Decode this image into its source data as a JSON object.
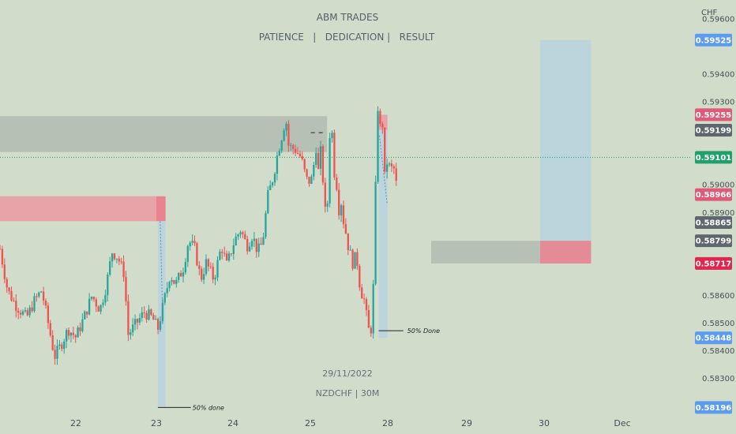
{
  "header": {
    "title": "ABM TRADES",
    "subtitle": "PATIENCE   |   DEDICATION |   RESULT"
  },
  "watermark": {
    "date": "29/11/2022",
    "symbol": "NZDCHF | 30M"
  },
  "currency": "CHF",
  "colors": {
    "background": "#d1dccb",
    "up": "#26a69a",
    "down": "#ef5350",
    "zone_gray": "#b4bcb2",
    "zone_red": "#e8a3a8",
    "target_blue": "#b9d2df",
    "tag_blue": "#5b9cf0",
    "tag_red": "#e05a78",
    "tag_gray": "#5f676e",
    "tag_green": "#22a06b",
    "tag_crimson": "#e0254e"
  },
  "annotations": {
    "fifty_done_1": "50% done",
    "fifty_done_2": "50% Done"
  },
  "chart_data": {
    "type": "candlestick",
    "symbol": "NZDCHF",
    "timeframe": "30M",
    "y_ticks": [
      0.596,
      0.594,
      0.593,
      0.59,
      0.589,
      0.586,
      0.585,
      0.584,
      0.583
    ],
    "y_tick_labels": [
      "0.59600",
      "0.59400",
      "0.59300",
      "0.59000",
      "0.58900",
      "0.58600",
      "0.58500",
      "0.58400",
      "0.58300"
    ],
    "ylim": [
      0.5818,
      0.5967
    ],
    "x_labels": [
      {
        "label": "22",
        "day": 22
      },
      {
        "label": "23",
        "day": 23
      },
      {
        "label": "24",
        "day": 24
      },
      {
        "label": "25",
        "day": 25
      },
      {
        "label": "28",
        "day": 28
      },
      {
        "label": "29",
        "day": 29
      },
      {
        "label": "30",
        "day": 30
      },
      {
        "label": "Dec",
        "day": 31
      }
    ],
    "price_tags": [
      {
        "label": "0.59525",
        "value": 0.59525,
        "color": "#5b9cf0"
      },
      {
        "label": "0.59255",
        "value": 0.59255,
        "color": "#e05a78"
      },
      {
        "label": "0.59199",
        "value": 0.59199,
        "color": "#5f676e"
      },
      {
        "label": "0.59101",
        "value": 0.59101,
        "color": "#22a06b"
      },
      {
        "label": "0.58966",
        "value": 0.58966,
        "color": "#e05a78"
      },
      {
        "label": "0.58865",
        "value": 0.58865,
        "color": "#5f676e"
      },
      {
        "label": "0.58799",
        "value": 0.58799,
        "color": "#5f676e"
      },
      {
        "label": "0.58717",
        "value": 0.58717,
        "color": "#e0254e"
      },
      {
        "label": "0.58448",
        "value": 0.58448,
        "color": "#5b9cf0"
      },
      {
        "label": "0.58196",
        "value": 0.58196,
        "color": "#5b9cf0"
      }
    ],
    "current_price": 0.59101,
    "zones": [
      {
        "kind": "supply-gray",
        "x_start": 21.0,
        "x_end": 25.65,
        "y_top": 0.5925,
        "y_bottom": 0.5912
      },
      {
        "kind": "supply-red",
        "x_start": 21.0,
        "x_end": 23.0,
        "y_top": 0.5896,
        "y_bottom": 0.5887
      },
      {
        "kind": "supply-red-edge",
        "x_start": 23.0,
        "x_end": 23.12,
        "y_top": 0.5896,
        "y_bottom": 0.5887
      },
      {
        "kind": "supply-red",
        "x_start": 27.65,
        "x_end": 27.99,
        "y_top": 0.59255,
        "y_bottom": 0.592
      },
      {
        "kind": "target-blue",
        "x_start": 23.02,
        "x_end": 23.12,
        "y_top": 0.5887,
        "y_bottom": 0.58196
      },
      {
        "kind": "target-blue",
        "x_start": 27.65,
        "x_end": 27.99,
        "y_top": 0.592,
        "y_bottom": 0.58448
      },
      {
        "kind": "demand-gray",
        "x_start": 28.55,
        "x_end": 30.6,
        "y_top": 0.58799,
        "y_bottom": 0.58717
      },
      {
        "kind": "target-blue",
        "x_start": 29.95,
        "x_end": 30.6,
        "y_top": 0.59525,
        "y_bottom": 0.58799
      },
      {
        "kind": "entry-red",
        "x_start": 29.95,
        "x_end": 30.6,
        "y_top": 0.58799,
        "y_bottom": 0.58717
      }
    ],
    "close_path": [
      [
        21.0,
        0.5877
      ],
      [
        21.1,
        0.5862
      ],
      [
        21.2,
        0.5857
      ],
      [
        21.35,
        0.5852
      ],
      [
        21.45,
        0.5858
      ],
      [
        21.55,
        0.5862
      ],
      [
        21.65,
        0.5848
      ],
      [
        21.72,
        0.5838
      ],
      [
        21.8,
        0.5842
      ],
      [
        21.9,
        0.5848
      ],
      [
        22.0,
        0.5845
      ],
      [
        22.1,
        0.5852
      ],
      [
        22.2,
        0.586
      ],
      [
        22.3,
        0.5855
      ],
      [
        22.38,
        0.5864
      ],
      [
        22.45,
        0.5876
      ],
      [
        22.52,
        0.5874
      ],
      [
        22.6,
        0.5868
      ],
      [
        22.65,
        0.5846
      ],
      [
        22.75,
        0.585
      ],
      [
        22.85,
        0.5854
      ],
      [
        22.95,
        0.5852
      ],
      [
        23.02,
        0.5848
      ],
      [
        23.1,
        0.5858
      ],
      [
        23.18,
        0.5868
      ],
      [
        23.25,
        0.5864
      ],
      [
        23.35,
        0.587
      ],
      [
        23.42,
        0.588
      ],
      [
        23.5,
        0.5877
      ],
      [
        23.58,
        0.5866
      ],
      [
        23.65,
        0.5872
      ],
      [
        23.75,
        0.5866
      ],
      [
        23.85,
        0.5878
      ],
      [
        23.92,
        0.5871
      ],
      [
        24.02,
        0.588
      ],
      [
        24.1,
        0.5884
      ],
      [
        24.18,
        0.5878
      ],
      [
        24.25,
        0.5882
      ],
      [
        24.32,
        0.5876
      ],
      [
        24.38,
        0.5879
      ],
      [
        24.45,
        0.5896
      ],
      [
        24.52,
        0.5903
      ],
      [
        24.58,
        0.5912
      ],
      [
        24.65,
        0.592
      ],
      [
        24.68,
        0.5925
      ],
      [
        24.72,
        0.5914
      ],
      [
        24.8,
        0.5913
      ],
      [
        24.88,
        0.591
      ],
      [
        24.95,
        0.5902
      ],
      [
        25.02,
        0.5901
      ],
      [
        25.1,
        0.5905
      ],
      [
        25.18,
        0.5911
      ],
      [
        25.25,
        0.5916
      ],
      [
        25.3,
        0.5904
      ],
      [
        25.38,
        0.5913
      ],
      [
        25.45,
        0.5909
      ],
      [
        25.52,
        0.5896
      ],
      [
        25.58,
        0.589
      ],
      [
        25.63,
        0.5885
      ],
      [
        25.7,
        0.5903
      ],
      [
        25.75,
        0.5918
      ],
      [
        25.78,
        0.5923
      ],
      [
        25.85,
        0.5918
      ],
      [
        25.92,
        0.5905
      ],
      [
        25.98,
        0.5903
      ],
      [
        26.05,
        0.5898
      ],
      [
        26.12,
        0.589
      ],
      [
        26.2,
        0.5894
      ],
      [
        26.3,
        0.5886
      ],
      [
        26.4,
        0.5882
      ],
      [
        26.5,
        0.5876
      ],
      [
        26.6,
        0.5874
      ],
      [
        26.68,
        0.587
      ],
      [
        26.75,
        0.5875
      ],
      [
        26.82,
        0.5872
      ],
      [
        26.9,
        0.5865
      ],
      [
        26.98,
        0.5862
      ],
      [
        27.05,
        0.5857
      ],
      [
        27.12,
        0.586
      ],
      [
        27.18,
        0.5852
      ],
      [
        27.24,
        0.5846
      ],
      [
        27.28,
        0.5849
      ],
      [
        27.32,
        0.5846
      ],
      [
        27.35,
        0.5848
      ],
      [
        27.4,
        0.5852
      ],
      [
        27.45,
        0.5866
      ],
      [
        27.5,
        0.5882
      ],
      [
        27.53,
        0.59
      ],
      [
        27.57,
        0.5915
      ],
      [
        27.6,
        0.5926
      ],
      [
        27.63,
        0.593
      ],
      [
        27.66,
        0.5928
      ],
      [
        27.7,
        0.5921
      ],
      [
        27.74,
        0.592
      ],
      [
        27.78,
        0.5925
      ],
      [
        27.82,
        0.5917
      ],
      [
        27.86,
        0.5907
      ],
      [
        27.9,
        0.59
      ],
      [
        27.93,
        0.5895
      ],
      [
        27.97,
        0.5908
      ],
      [
        28.0,
        0.5912
      ],
      [
        28.03,
        0.5904
      ],
      [
        28.06,
        0.5907
      ],
      [
        28.09,
        0.5905
      ],
      [
        28.12,
        0.5897
      ]
    ]
  }
}
